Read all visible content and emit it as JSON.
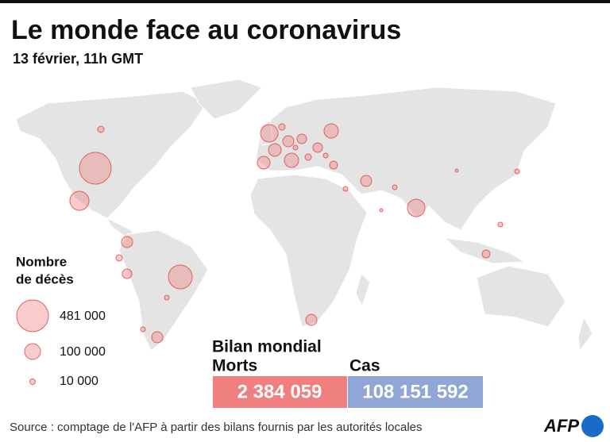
{
  "header": {
    "title": "Le monde face au coronavirus",
    "subtitle": "13 février, 11h GMT"
  },
  "legend": {
    "title_lines": [
      "Nombre",
      "de décès"
    ],
    "items": [
      {
        "label": "481 000"
      },
      {
        "label": "100 000"
      },
      {
        "label": "10 000"
      }
    ]
  },
  "summary": {
    "title": "Bilan mondial",
    "deaths": {
      "label": "Morts",
      "value": "2 384 059"
    },
    "cases": {
      "label": "Cas",
      "value": "108 151 592"
    }
  },
  "source": "Source : comptage de l'AFP à partir des bilans fournis par les autorités locales",
  "logo": "AFP"
}
